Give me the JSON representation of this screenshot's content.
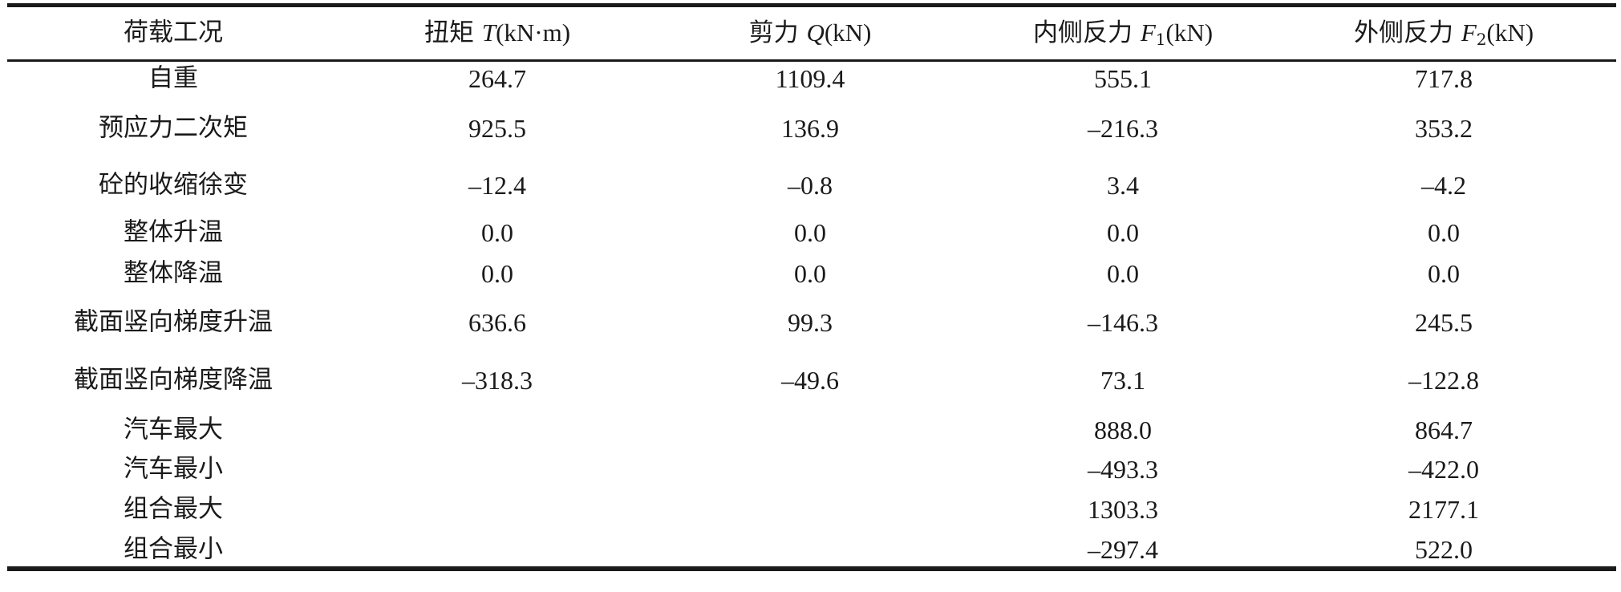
{
  "table": {
    "headers": [
      {
        "pre": "荷载工况",
        "var": "",
        "sub": "",
        "post": ""
      },
      {
        "pre": "扭矩 ",
        "var": "T",
        "sub": "",
        "post": "(kN·m)"
      },
      {
        "pre": "剪力 ",
        "var": "Q",
        "sub": "",
        "post": "(kN)"
      },
      {
        "pre": "内侧反力 ",
        "var": "F",
        "sub": "1",
        "post": "(kN)"
      },
      {
        "pre": "外侧反力 ",
        "var": "F",
        "sub": "2",
        "post": "(kN)"
      }
    ],
    "rows": [
      [
        "自重",
        "264.7",
        "1109.4",
        "555.1",
        "717.8"
      ],
      [
        "预应力二次矩",
        "925.5",
        "136.9",
        "–216.3",
        "353.2"
      ],
      [
        "砼的收缩徐变",
        "–12.4",
        "–0.8",
        "3.4",
        "–4.2"
      ],
      [
        "整体升温",
        "0.0",
        "0.0",
        "0.0",
        "0.0"
      ],
      [
        "整体降温",
        "0.0",
        "0.0",
        "0.0",
        "0.0"
      ],
      [
        "截面竖向梯度升温",
        "636.6",
        "99.3",
        "–146.3",
        "245.5"
      ],
      [
        "截面竖向梯度降温",
        "–318.3",
        "–49.6",
        "73.1",
        "–122.8"
      ],
      [
        "汽车最大",
        "",
        "",
        "888.0",
        "864.7"
      ],
      [
        "汽车最小",
        "",
        "",
        "–493.3",
        "–422.0"
      ],
      [
        "组合最大",
        "",
        "",
        "1303.3",
        "2177.1"
      ],
      [
        "组合最小",
        "",
        "",
        "–297.4",
        "522.0"
      ]
    ]
  }
}
